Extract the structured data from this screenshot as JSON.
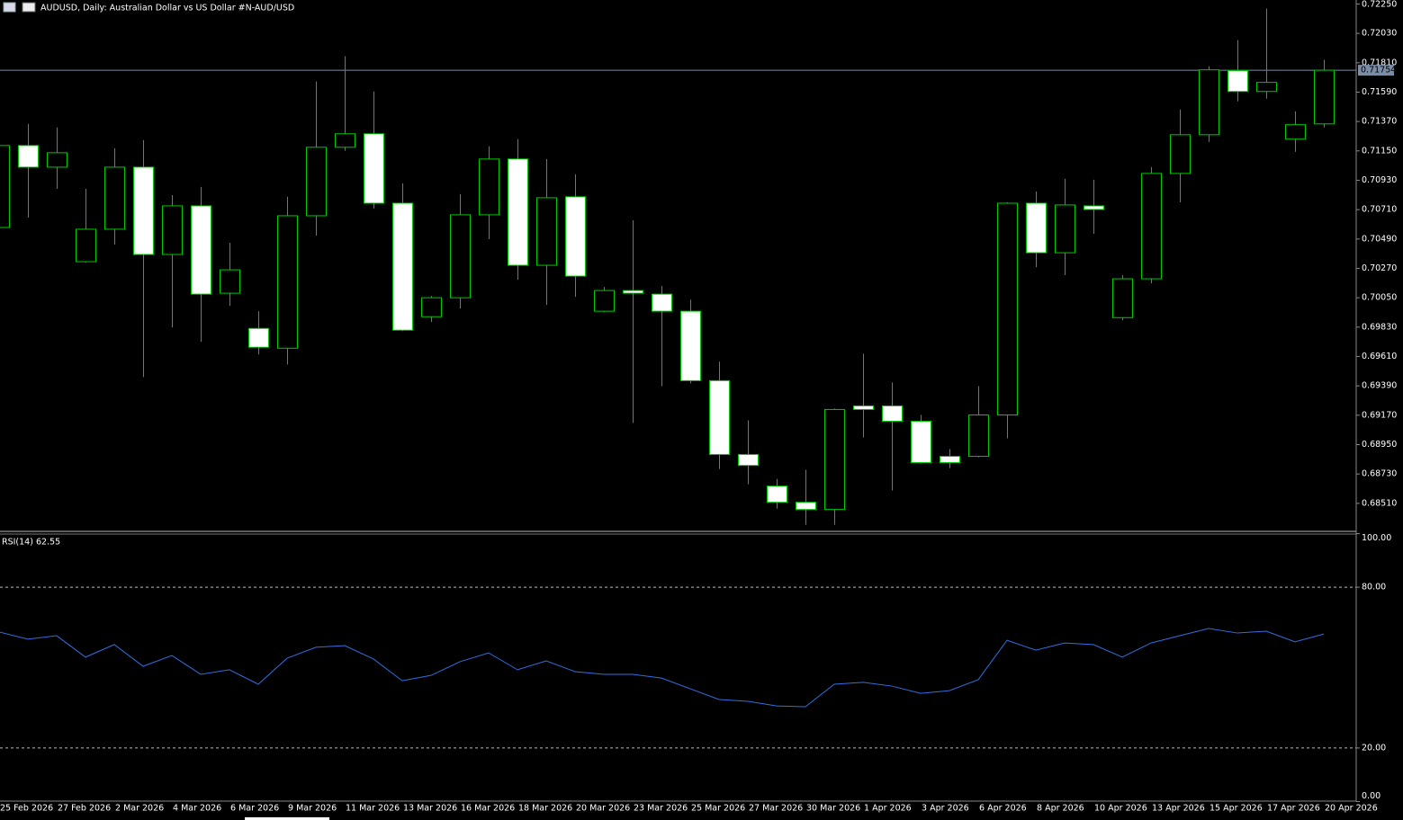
{
  "chart_data": [
    {
      "type": "candlestick",
      "title": "AUDUSD, Daily:  Australian Dollar vs US Dollar #N-AUD/USD",
      "categories": [
        "25 Feb 2026",
        null,
        "27 Feb 2026",
        null,
        "2 Mar 2026",
        null,
        "4 Mar 2026",
        null,
        "6 Mar 2026",
        null,
        "9 Mar 2026",
        null,
        "11 Mar 2026",
        null,
        "13 Mar 2026",
        null,
        "16 Mar 2026",
        null,
        "18 Mar 2026",
        null,
        "20 Mar 2026",
        null,
        "23 Mar 2026",
        null,
        "25 Mar 2026",
        null,
        "27 Mar 2026",
        null,
        "30 Mar 2026",
        null,
        "1 Apr 2026",
        null,
        "3 Apr 2026",
        null,
        "6 Apr 2026",
        null,
        "8 Apr 2026",
        null,
        "10 Apr 2026",
        null,
        "13 Apr 2026",
        null,
        "15 Apr 2026",
        null,
        "17 Apr 2026",
        null,
        "20 Apr 2026"
      ],
      "open": [
        0.70576,
        0.7119,
        0.71028,
        0.7032,
        0.70563,
        0.71028,
        0.70374,
        0.70738,
        0.70084,
        0.6982,
        0.69672,
        0.70664,
        0.71177,
        0.71278,
        0.70758,
        0.69908,
        0.7005,
        0.70671,
        0.71089,
        0.70293,
        0.70806,
        0.69949,
        0.70104,
        0.70077,
        0.69949,
        0.69429,
        0.68876,
        0.68639,
        0.68518,
        0.68464,
        0.6924,
        0.6924,
        0.69125,
        0.68862,
        0.68862,
        0.69172,
        0.70758,
        0.70387,
        0.70738,
        0.69901,
        0.70192,
        0.70981,
        0.71271,
        0.71751,
        0.71595,
        0.71238,
        0.71352
      ],
      "high": [
        0.71271,
        0.71352,
        0.71325,
        0.70866,
        0.7117,
        0.71231,
        0.70819,
        0.7088,
        0.70462,
        0.69949,
        0.70806,
        0.7167,
        0.71859,
        0.71595,
        0.70907,
        0.70063,
        0.70826,
        0.71184,
        0.71238,
        0.71089,
        0.70974,
        0.70131,
        0.7063,
        0.70138,
        0.70036,
        0.69571,
        0.69132,
        0.68693,
        0.68761,
        0.6922,
        0.69631,
        0.69415,
        0.69172,
        0.68916,
        0.69388,
        0.70765,
        0.70846,
        0.70941,
        0.70934,
        0.70219,
        0.71028,
        0.7146,
        0.71784,
        0.7198,
        0.72216,
        0.71447,
        0.71832
      ],
      "low": [
        0.70529,
        0.7065,
        0.70866,
        0.70313,
        0.70448,
        0.69456,
        0.69827,
        0.69719,
        0.69989,
        0.69625,
        0.6955,
        0.70516,
        0.7115,
        0.70718,
        0.698,
        0.69868,
        0.69969,
        0.70489,
        0.70185,
        0.69996,
        0.70057,
        0.69942,
        0.69112,
        0.69388,
        0.69409,
        0.68767,
        0.68653,
        0.68471,
        0.68349,
        0.68349,
        0.69004,
        0.68606,
        0.68808,
        0.68774,
        0.68855,
        0.68997,
        0.70279,
        0.70219,
        0.70529,
        0.69881,
        0.70158,
        0.70765,
        0.71217,
        0.71521,
        0.71541,
        0.71143,
        0.71325
      ],
      "close": [
        0.7119,
        0.71028,
        0.71136,
        0.70563,
        0.71028,
        0.70374,
        0.70738,
        0.70077,
        0.70259,
        0.69679,
        0.70664,
        0.71177,
        0.71278,
        0.70758,
        0.69807,
        0.7005,
        0.70671,
        0.71089,
        0.70293,
        0.70799,
        0.70212,
        0.70104,
        0.70084,
        0.69949,
        0.69429,
        0.68876,
        0.68794,
        0.68518,
        0.68464,
        0.69213,
        0.69213,
        0.69125,
        0.68815,
        0.68815,
        0.69172,
        0.70758,
        0.70387,
        0.70745,
        0.70711,
        0.70192,
        0.70981,
        0.71271,
        0.71757,
        0.71595,
        0.71663,
        0.71346,
        0.71754
      ],
      "up_color": "#000000",
      "down_color": "#ffffff",
      "wick_color": "#00c800",
      "ylim": [
        0.683,
        0.7228
      ],
      "yticks": [
        {
          "value": 0.7225,
          "label": "0.72250"
        },
        {
          "value": 0.7203,
          "label": "0.72030"
        },
        {
          "value": 0.7181,
          "label": "0.71810"
        },
        {
          "value": 0.7159,
          "label": "0.71590"
        },
        {
          "value": 0.7137,
          "label": "0.71370"
        },
        {
          "value": 0.7115,
          "label": "0.71150"
        },
        {
          "value": 0.7093,
          "label": "0.70930"
        },
        {
          "value": 0.7071,
          "label": "0.70710"
        },
        {
          "value": 0.7049,
          "label": "0.70490"
        },
        {
          "value": 0.7027,
          "label": "0.70270"
        },
        {
          "value": 0.7005,
          "label": "0.70050"
        },
        {
          "value": 0.6983,
          "label": "0.69830"
        },
        {
          "value": 0.6961,
          "label": "0.69610"
        },
        {
          "value": 0.6939,
          "label": "0.69390"
        },
        {
          "value": 0.6917,
          "label": "0.69170"
        },
        {
          "value": 0.6895,
          "label": "0.68950"
        },
        {
          "value": 0.6873,
          "label": "0.68730"
        },
        {
          "value": 0.6851,
          "label": "0.68510"
        }
      ],
      "last_price": {
        "value": 0.71754,
        "label": "0.71754"
      }
    },
    {
      "type": "line",
      "title": "RSI(14) 62.55",
      "values": [
        63.3,
        60.6,
        61.9,
        53.9,
        58.6,
        50.5,
        54.5,
        47.5,
        49.2,
        43.8,
        53.5,
        57.6,
        58.2,
        53.2,
        45.1,
        47.1,
        52.2,
        55.5,
        49.2,
        52.5,
        48.5,
        47.5,
        47.5,
        46.1,
        42.1,
        38.1,
        37.4,
        35.7,
        35.4,
        43.8,
        44.5,
        43.1,
        40.4,
        41.4,
        45.5,
        60.2,
        56.5,
        59.2,
        58.6,
        53.9,
        59.2,
        61.9,
        64.6,
        62.9,
        63.6,
        59.6,
        62.55
      ],
      "color": "#2f6fe0",
      "ylim": [
        0,
        100
      ],
      "yticks": [
        {
          "value": 100,
          "label": "100.00"
        },
        {
          "value": 80,
          "label": "80.00"
        },
        {
          "value": 20,
          "label": "20.00"
        },
        {
          "value": 0,
          "label": "0.00"
        }
      ]
    }
  ]
}
